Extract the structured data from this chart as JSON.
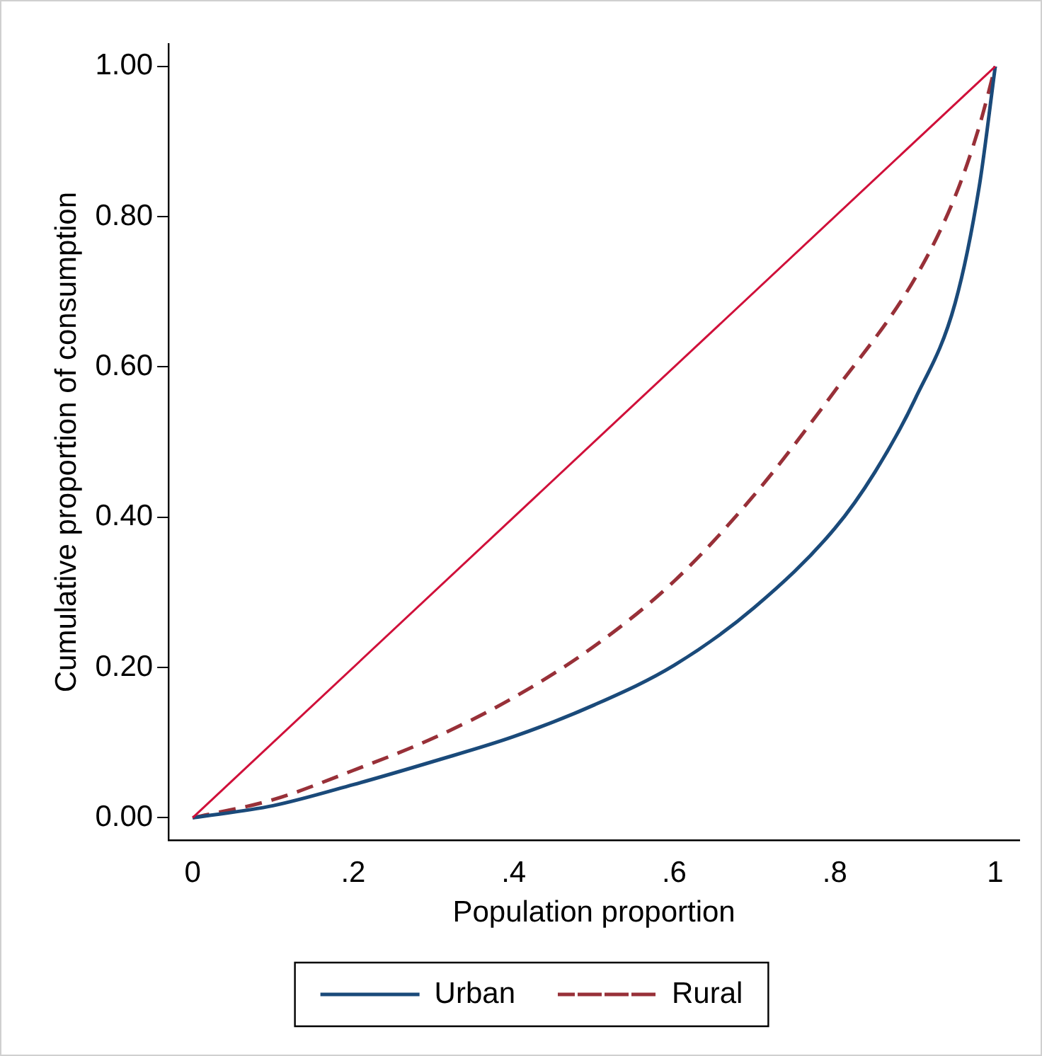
{
  "chart_data": {
    "type": "line",
    "xlabel": "Population proportion",
    "ylabel": "Cumulative proportion of consumption",
    "xlim": [
      -0.03,
      1.03
    ],
    "ylim": [
      -0.03,
      1.03
    ],
    "xticks": [
      0,
      {
        "value": 0.2,
        "label": ".2"
      },
      {
        "value": 0.4,
        "label": ".4"
      },
      {
        "value": 0.6,
        "label": ".6"
      },
      {
        "value": 0.8,
        "label": ".8"
      },
      1
    ],
    "yticks": [
      {
        "value": 0,
        "label": "0.00"
      },
      {
        "value": 0.2,
        "label": "0.20"
      },
      {
        "value": 0.4,
        "label": "0.40"
      },
      {
        "value": 0.6,
        "label": "0.60"
      },
      {
        "value": 0.8,
        "label": "0.80"
      },
      {
        "value": 1,
        "label": "1.00"
      }
    ],
    "grid": false,
    "legend": "bottom",
    "marker": "none",
    "series": [
      {
        "color": "#d0103a",
        "x": [
          0,
          1
        ],
        "values": [
          0,
          1
        ],
        "line_style": "solid"
      },
      {
        "name": "Urban",
        "color": "#1a4a7a",
        "line_style": "solid",
        "x": [
          0,
          0.1,
          0.2,
          0.3,
          0.4,
          0.5,
          0.6,
          0.7,
          0.8,
          0.85,
          0.9,
          0.95,
          0.98,
          1
        ],
        "values": [
          0,
          0.016,
          0.044,
          0.075,
          0.108,
          0.15,
          0.203,
          0.28,
          0.385,
          0.46,
          0.557,
          0.685,
          0.84,
          1
        ]
      },
      {
        "name": "Rural",
        "color": "#983038",
        "line_style": "dashed",
        "x": [
          0,
          0.1,
          0.2,
          0.3,
          0.4,
          0.5,
          0.6,
          0.7,
          0.8,
          0.9,
          0.95,
          0.98,
          1
        ],
        "values": [
          0,
          0.024,
          0.063,
          0.106,
          0.16,
          0.228,
          0.315,
          0.43,
          0.568,
          0.718,
          0.827,
          0.92,
          1
        ]
      }
    ]
  }
}
